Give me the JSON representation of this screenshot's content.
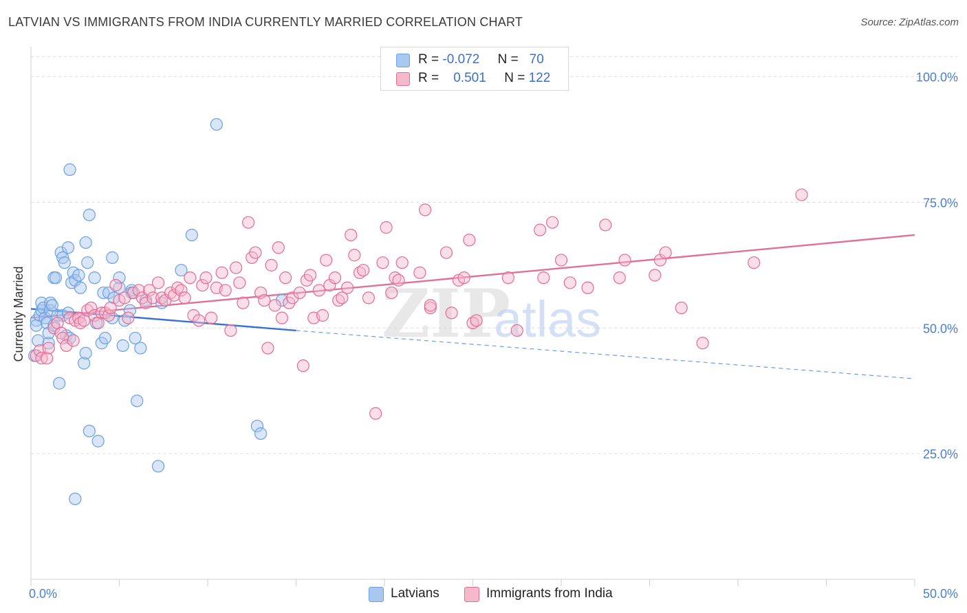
{
  "header": {
    "title": "LATVIAN VS IMMIGRANTS FROM INDIA CURRENTLY MARRIED CORRELATION CHART",
    "source": "Source: ZipAtlas.com"
  },
  "watermark": {
    "zip": "ZIP",
    "atlas": "atlas"
  },
  "legend": {
    "rows": [
      {
        "r_label": "R =",
        "r_value": "-0.072",
        "n_label": "N =",
        "n_value": "70",
        "color": "#a9c8f0"
      },
      {
        "r_label": "R =",
        "r_value": "0.501",
        "n_label": "N =",
        "n_value": "122",
        "color": "#f6b8cb"
      }
    ]
  },
  "bottom_legend": [
    {
      "label": "Latvians",
      "color": "#a9c8f0"
    },
    {
      "label": "Immigrants from India",
      "color": "#f6b8cb"
    }
  ],
  "chart_data": {
    "type": "scatter",
    "title": "LATVIAN VS IMMIGRANTS FROM INDIA CURRENTLY MARRIED CORRELATION CHART",
    "xlabel": "",
    "ylabel": "Currently Married",
    "xlim": [
      0,
      50
    ],
    "ylim": [
      0,
      105
    ],
    "x_tick_labels": [
      "0.0%",
      "50.0%"
    ],
    "y_ticks": [
      25,
      50,
      75,
      100
    ],
    "y_tick_labels": [
      "25.0%",
      "50.0%",
      "75.0%",
      "100.0%"
    ],
    "grid": true,
    "series": [
      {
        "name": "Latvians",
        "color": "#6a9fe0",
        "fill": "#a9c8f0",
        "trend": {
          "x0": 0,
          "y0": 53.8,
          "x1": 15,
          "y1": 49.5,
          "dash_x1": 50,
          "dash_y1": 39.9
        },
        "points": [
          [
            0.2,
            44.5
          ],
          [
            0.3,
            51.5
          ],
          [
            0.3,
            50.5
          ],
          [
            0.4,
            47.5
          ],
          [
            0.5,
            52.5
          ],
          [
            0.6,
            53.5
          ],
          [
            0.6,
            55
          ],
          [
            0.7,
            54
          ],
          [
            0.8,
            52
          ],
          [
            0.9,
            51
          ],
          [
            1.0,
            47
          ],
          [
            1.0,
            49
          ],
          [
            1.1,
            53.5
          ],
          [
            1.1,
            55
          ],
          [
            1.2,
            54.5
          ],
          [
            1.3,
            50.5
          ],
          [
            1.3,
            60
          ],
          [
            1.4,
            60
          ],
          [
            1.5,
            52.5
          ],
          [
            1.6,
            39
          ],
          [
            1.7,
            65
          ],
          [
            1.8,
            52.5
          ],
          [
            1.8,
            64
          ],
          [
            1.9,
            63
          ],
          [
            2.0,
            48.5
          ],
          [
            2.1,
            53
          ],
          [
            2.1,
            66
          ],
          [
            2.2,
            48
          ],
          [
            2.2,
            81.5
          ],
          [
            2.3,
            59
          ],
          [
            2.4,
            61
          ],
          [
            2.5,
            59.5
          ],
          [
            2.5,
            16
          ],
          [
            2.7,
            60.5
          ],
          [
            2.8,
            58
          ],
          [
            3.0,
            43
          ],
          [
            3.1,
            67
          ],
          [
            3.1,
            45
          ],
          [
            3.2,
            63
          ],
          [
            3.3,
            72.5
          ],
          [
            3.3,
            29.5
          ],
          [
            3.6,
            60
          ],
          [
            3.7,
            51
          ],
          [
            3.8,
            27.5
          ],
          [
            4.0,
            47
          ],
          [
            4.1,
            57
          ],
          [
            4.2,
            48
          ],
          [
            4.4,
            57
          ],
          [
            4.6,
            64
          ],
          [
            4.7,
            56
          ],
          [
            5.0,
            58
          ],
          [
            5.0,
            60
          ],
          [
            5.2,
            46.5
          ],
          [
            5.3,
            51.5
          ],
          [
            5.6,
            53.5
          ],
          [
            5.7,
            57.5
          ],
          [
            5.9,
            48
          ],
          [
            6.0,
            35.5
          ],
          [
            6.2,
            46
          ],
          [
            7.2,
            22.5
          ],
          [
            7.4,
            55
          ],
          [
            8.5,
            61.5
          ],
          [
            9.1,
            68.5
          ],
          [
            10.5,
            90.5
          ],
          [
            12.8,
            30.5
          ],
          [
            13.0,
            29
          ],
          [
            14.2,
            55.5
          ],
          [
            5.7,
            57
          ],
          [
            6.5,
            55.5
          ],
          [
            4.6,
            52
          ]
        ]
      },
      {
        "name": "Immigrants from India",
        "color": "#e46b94",
        "fill": "#f6b8cb",
        "trend": {
          "x0": 0,
          "y0": 52.0,
          "x1": 50,
          "y1": 68.5
        },
        "points": [
          [
            0.3,
            44.5
          ],
          [
            0.5,
            45.5
          ],
          [
            0.6,
            44
          ],
          [
            0.9,
            44
          ],
          [
            1.0,
            46
          ],
          [
            1.3,
            50
          ],
          [
            1.5,
            51
          ],
          [
            1.7,
            49
          ],
          [
            1.8,
            48
          ],
          [
            2.0,
            46.5
          ],
          [
            2.2,
            52
          ],
          [
            2.4,
            47.5
          ],
          [
            2.5,
            51.5
          ],
          [
            2.7,
            52
          ],
          [
            2.8,
            51
          ],
          [
            3.0,
            51.5
          ],
          [
            3.2,
            53.5
          ],
          [
            3.4,
            54
          ],
          [
            3.6,
            52.5
          ],
          [
            3.8,
            51
          ],
          [
            4.0,
            53
          ],
          [
            4.2,
            53
          ],
          [
            4.4,
            52.5
          ],
          [
            4.5,
            54
          ],
          [
            4.8,
            58.5
          ],
          [
            5.0,
            55.5
          ],
          [
            5.3,
            56
          ],
          [
            5.5,
            52
          ],
          [
            5.8,
            57
          ],
          [
            6.1,
            57.5
          ],
          [
            6.3,
            56
          ],
          [
            6.5,
            55
          ],
          [
            6.7,
            57.5
          ],
          [
            6.9,
            56
          ],
          [
            7.2,
            59
          ],
          [
            7.4,
            56
          ],
          [
            7.6,
            55.5
          ],
          [
            7.9,
            57
          ],
          [
            8.1,
            56.5
          ],
          [
            8.3,
            58
          ],
          [
            8.5,
            57.5
          ],
          [
            8.7,
            56
          ],
          [
            9.0,
            60
          ],
          [
            9.2,
            52.5
          ],
          [
            9.5,
            51.5
          ],
          [
            9.7,
            58.5
          ],
          [
            9.9,
            60
          ],
          [
            10.2,
            52
          ],
          [
            10.5,
            58
          ],
          [
            10.8,
            61
          ],
          [
            11.0,
            57.5
          ],
          [
            11.3,
            49.5
          ],
          [
            11.6,
            62
          ],
          [
            11.8,
            59
          ],
          [
            12.0,
            55
          ],
          [
            12.3,
            71
          ],
          [
            12.5,
            64
          ],
          [
            12.7,
            65
          ],
          [
            13.0,
            57
          ],
          [
            13.2,
            55.5
          ],
          [
            13.4,
            46
          ],
          [
            13.6,
            62.5
          ],
          [
            13.8,
            54.5
          ],
          [
            14.0,
            66
          ],
          [
            14.2,
            52
          ],
          [
            14.4,
            60
          ],
          [
            14.6,
            55
          ],
          [
            14.8,
            56
          ],
          [
            15.2,
            57
          ],
          [
            15.4,
            42.5
          ],
          [
            15.6,
            59.5
          ],
          [
            15.8,
            60.5
          ],
          [
            16.0,
            52
          ],
          [
            16.3,
            57.5
          ],
          [
            16.5,
            52.5
          ],
          [
            16.7,
            63.5
          ],
          [
            16.9,
            58.5
          ],
          [
            17.2,
            60
          ],
          [
            17.4,
            55.5
          ],
          [
            17.6,
            56
          ],
          [
            17.9,
            58
          ],
          [
            18.1,
            68.5
          ],
          [
            18.3,
            64.5
          ],
          [
            18.6,
            61
          ],
          [
            18.8,
            61.5
          ],
          [
            19.1,
            56
          ],
          [
            19.5,
            33
          ],
          [
            19.9,
            63
          ],
          [
            20.1,
            70
          ],
          [
            20.4,
            57
          ],
          [
            20.6,
            60
          ],
          [
            20.8,
            59.5
          ],
          [
            21.0,
            63
          ],
          [
            22.0,
            61
          ],
          [
            22.3,
            73.5
          ],
          [
            22.6,
            54
          ],
          [
            23.5,
            65
          ],
          [
            23.8,
            53
          ],
          [
            24.2,
            59.5
          ],
          [
            24.5,
            60
          ],
          [
            24.8,
            67.5
          ],
          [
            25.0,
            51
          ],
          [
            25.2,
            51.5
          ],
          [
            27.0,
            60
          ],
          [
            27.5,
            49.5
          ],
          [
            28.8,
            69.5
          ],
          [
            29.0,
            60
          ],
          [
            29.5,
            71
          ],
          [
            30.0,
            63.5
          ],
          [
            30.5,
            59
          ],
          [
            31.5,
            58
          ],
          [
            32.5,
            70.5
          ],
          [
            33.3,
            60
          ],
          [
            33.6,
            63.5
          ],
          [
            35.3,
            60.5
          ],
          [
            35.6,
            63.5
          ],
          [
            35.9,
            65
          ],
          [
            36.8,
            54
          ],
          [
            38.0,
            47
          ],
          [
            40.9,
            63
          ],
          [
            43.6,
            76.5
          ],
          [
            22.6,
            54.5
          ]
        ]
      }
    ]
  }
}
